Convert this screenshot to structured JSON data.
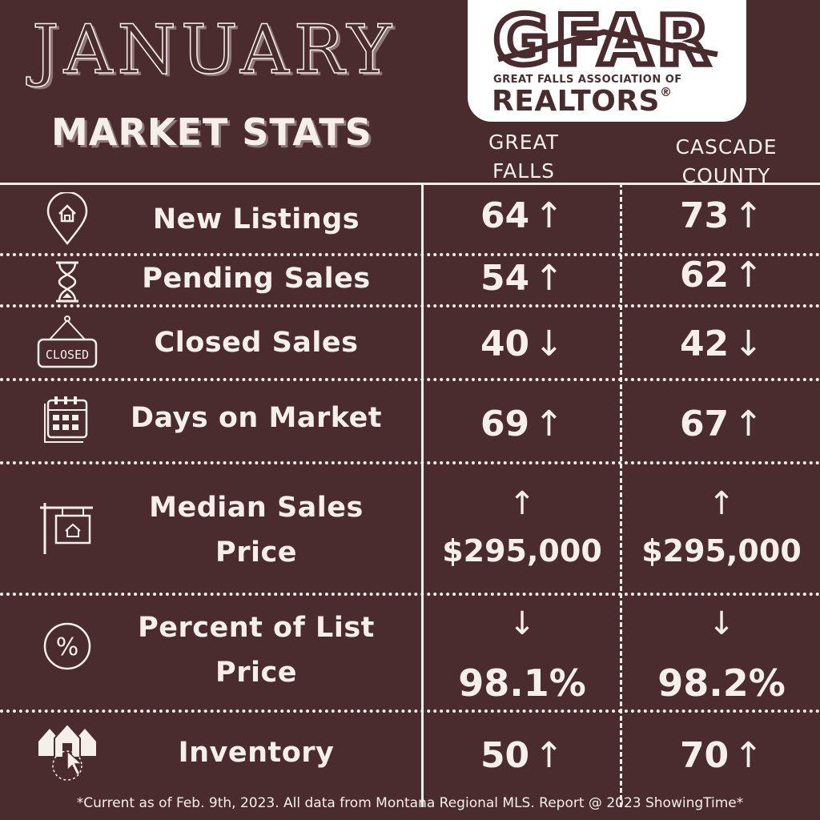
{
  "header": {
    "month": "JANUARY",
    "subtitle": "MARKET STATS"
  },
  "logo": {
    "letters": "GFAR",
    "association": "GREAT FALLS ASSOCIATION OF",
    "realtors": "REALTORS",
    "registered": "®"
  },
  "columns": {
    "great_falls": [
      "GREAT",
      "FALLS"
    ],
    "cascade_county": [
      "CASCADE",
      "COUNTY"
    ]
  },
  "rows": [
    {
      "label": "New Listings",
      "icon": "house-pin-icon",
      "gf": "64",
      "gf_trend": "↑",
      "cc": "73",
      "cc_trend": "↑"
    },
    {
      "label": "Pending Sales",
      "icon": "hourglass-icon",
      "gf": "54",
      "gf_trend": "↑",
      "cc": "62",
      "cc_trend": "↑"
    },
    {
      "label": "Closed Sales",
      "icon": "closed-sign-icon",
      "icon_text": "CLOSED",
      "gf": "40",
      "gf_trend": "↓",
      "cc": "42",
      "cc_trend": "↓"
    },
    {
      "label": "Days on Market",
      "icon": "calendar-icon",
      "gf": "69",
      "gf_trend": "↑",
      "cc": "67",
      "cc_trend": "↑"
    },
    {
      "label_lines": [
        "Median Sales",
        "Price"
      ],
      "icon": "for-sale-sign-icon",
      "gf": "$295,000",
      "gf_trend": "↑",
      "cc": "$295,000",
      "cc_trend": "↑"
    },
    {
      "label_lines": [
        "Percent of List",
        "Price"
      ],
      "icon": "percent-icon",
      "gf": "98.1%",
      "gf_trend": "↓",
      "cc": "98.2%",
      "cc_trend": "↓"
    },
    {
      "label": "Inventory",
      "icon": "houses-click-icon",
      "gf": "50",
      "gf_trend": "↑",
      "cc": "70",
      "cc_trend": "↑"
    }
  ],
  "footer": "*Current as of Feb. 9th, 2023. All data from Montana Regional MLS. Report @ 2023 ShowingTime*",
  "colors": {
    "background": "#4a2c2e",
    "text": "#f4efe9",
    "shadow": "#8f7779",
    "logo_bg": "#ffffff"
  }
}
